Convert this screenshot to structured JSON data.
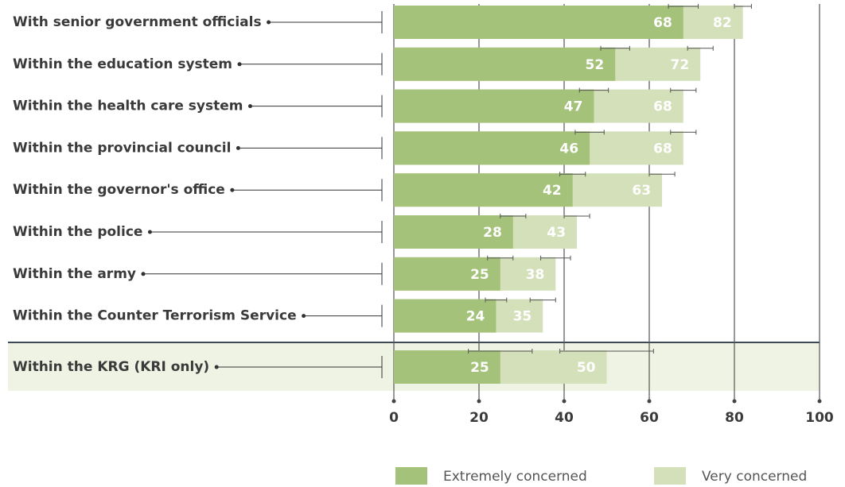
{
  "chart_data": {
    "type": "bar",
    "orientation": "horizontal",
    "overlap": true,
    "categories": [
      "With senior government officials",
      "Within the education system",
      "Within the health care system",
      "Within the provincial council",
      "Within the governor's office",
      "Within the police",
      "Within the army",
      "Within the Counter Terrorism Service",
      "Within the KRG (KRI only)"
    ],
    "series": [
      {
        "name": "Extremely concerned",
        "color": "#a5c27b",
        "values": [
          68,
          52,
          47,
          46,
          42,
          28,
          25,
          24,
          25
        ],
        "errors": [
          3.5,
          3.4,
          3.4,
          3.4,
          3,
          3,
          3,
          2.5,
          7.5
        ]
      },
      {
        "name": "Very concerned",
        "color": "#d4e0ba",
        "values": [
          82,
          72,
          68,
          68,
          63,
          43,
          38,
          35,
          50
        ],
        "errors": [
          2,
          3,
          3,
          3,
          3,
          3,
          3.5,
          3,
          11
        ]
      }
    ],
    "xlim": [
      0,
      100
    ],
    "xticks": [
      0,
      20,
      40,
      60,
      80,
      100
    ],
    "grid": true,
    "legend": "bottom"
  }
}
